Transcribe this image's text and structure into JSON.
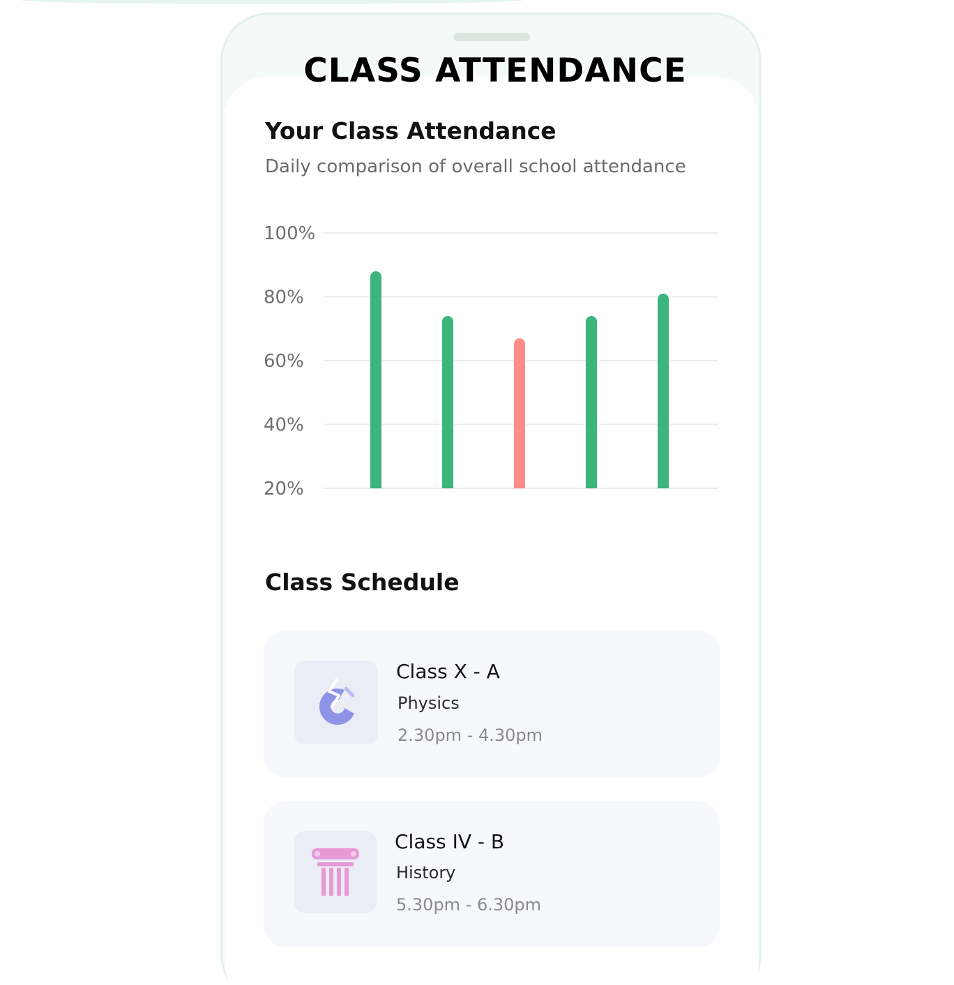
{
  "banner": {
    "title": "CLASS ATTENDANCE"
  },
  "attendance": {
    "title": "Your Class Attendance",
    "subtitle": "Daily comparison of overall school attendance"
  },
  "chart_data": {
    "type": "bar",
    "title": "Your Class Attendance",
    "subtitle": "Daily comparison of overall school attendance",
    "categories": [
      "",
      "",
      "",
      "",
      ""
    ],
    "values": [
      88,
      74,
      67,
      74,
      81
    ],
    "colors": [
      "#3bb47e",
      "#3bb47e",
      "#ff8a86",
      "#3bb47e",
      "#3bb47e"
    ],
    "y_ticks": [
      "100%",
      "80%",
      "60%",
      "40%",
      "20%"
    ],
    "y_tick_values": [
      100,
      80,
      60,
      40,
      20
    ],
    "ylim": [
      20,
      100
    ],
    "grid": true,
    "xlabel": "",
    "ylabel": ""
  },
  "schedule": {
    "title": "Class Schedule",
    "items": [
      {
        "class_name": "Class X - A",
        "subject": "Physics",
        "time": "2.30pm - 4.30pm",
        "icon": "magnet-icon",
        "icon_color": "#8f93e6"
      },
      {
        "class_name": "Class IV - B",
        "subject": "History",
        "time": "5.30pm - 6.30pm",
        "icon": "column-icon",
        "icon_color": "#e59ad6"
      }
    ]
  }
}
